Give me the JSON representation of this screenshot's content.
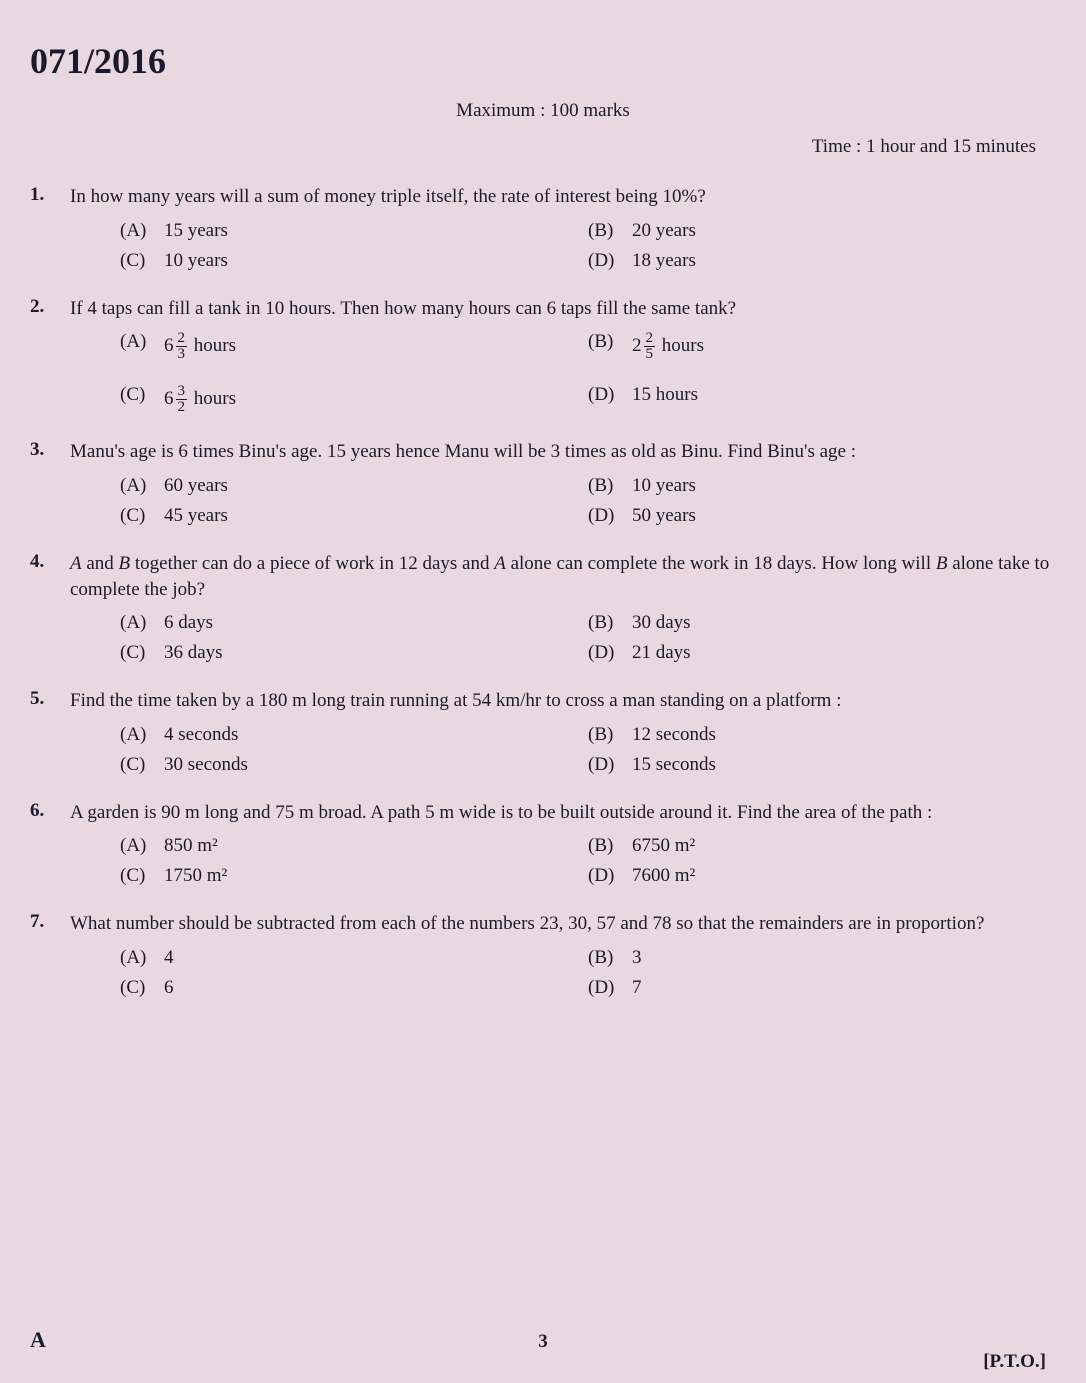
{
  "paper_code": "071/2016",
  "max_marks": "Maximum : 100 marks",
  "time": "Time : 1 hour and 15 minutes",
  "footer": {
    "series": "A",
    "page": "3",
    "pto": "[P.T.O.]"
  },
  "questions": [
    {
      "num": "1.",
      "text": "In how many years will a sum of money triple itself, the rate of interest being 10%?",
      "options": {
        "A": "15 years",
        "B": "20 years",
        "C": "10 years",
        "D": "18 years"
      }
    },
    {
      "num": "2.",
      "text": "If 4 taps can fill a tank in 10 hours. Then how many hours can 6 taps fill the same tank?",
      "options": {
        "A_prefix": "6",
        "A_num": "2",
        "A_den": "3",
        "A_suffix": " hours",
        "B_prefix": "2",
        "B_num": "2",
        "B_den": "5",
        "B_suffix": " hours",
        "C_prefix": "6",
        "C_num": "3",
        "C_den": "2",
        "C_suffix": " hours",
        "D": "15 hours"
      }
    },
    {
      "num": "3.",
      "text": "Manu's age is 6 times Binu's age. 15 years hence Manu will be 3 times as old as Binu. Find Binu's age :",
      "options": {
        "A": "60 years",
        "B": "10 years",
        "C": "45 years",
        "D": "50 years"
      }
    },
    {
      "num": "4.",
      "text_html": "A and B together can do a piece of work in 12 days and A alone can complete the work in 18 days. How long will B alone take to complete the job?",
      "options": {
        "A": "6 days",
        "B": "30 days",
        "C": "36 days",
        "D": "21 days"
      }
    },
    {
      "num": "5.",
      "text": "Find the time taken by a 180 m long train running at 54 km/hr to cross a man standing on a platform :",
      "options": {
        "A": "4 seconds",
        "B": "12 seconds",
        "C": "30 seconds",
        "D": "15 seconds"
      }
    },
    {
      "num": "6.",
      "text": "A garden is 90 m long and 75 m broad. A path 5 m wide is to be built outside around it. Find the area of the path :",
      "options": {
        "A": "850 m²",
        "B": "6750 m²",
        "C": "1750 m²",
        "D": "7600 m²"
      }
    },
    {
      "num": "7.",
      "text": "What number should be subtracted from each of the numbers 23, 30, 57 and 78 so that the remainders are in proportion?",
      "options": {
        "A": "4",
        "B": "3",
        "C": "6",
        "D": "7"
      }
    }
  ],
  "labels": {
    "A": "(A)",
    "B": "(B)",
    "C": "(C)",
    "D": "(D)"
  }
}
